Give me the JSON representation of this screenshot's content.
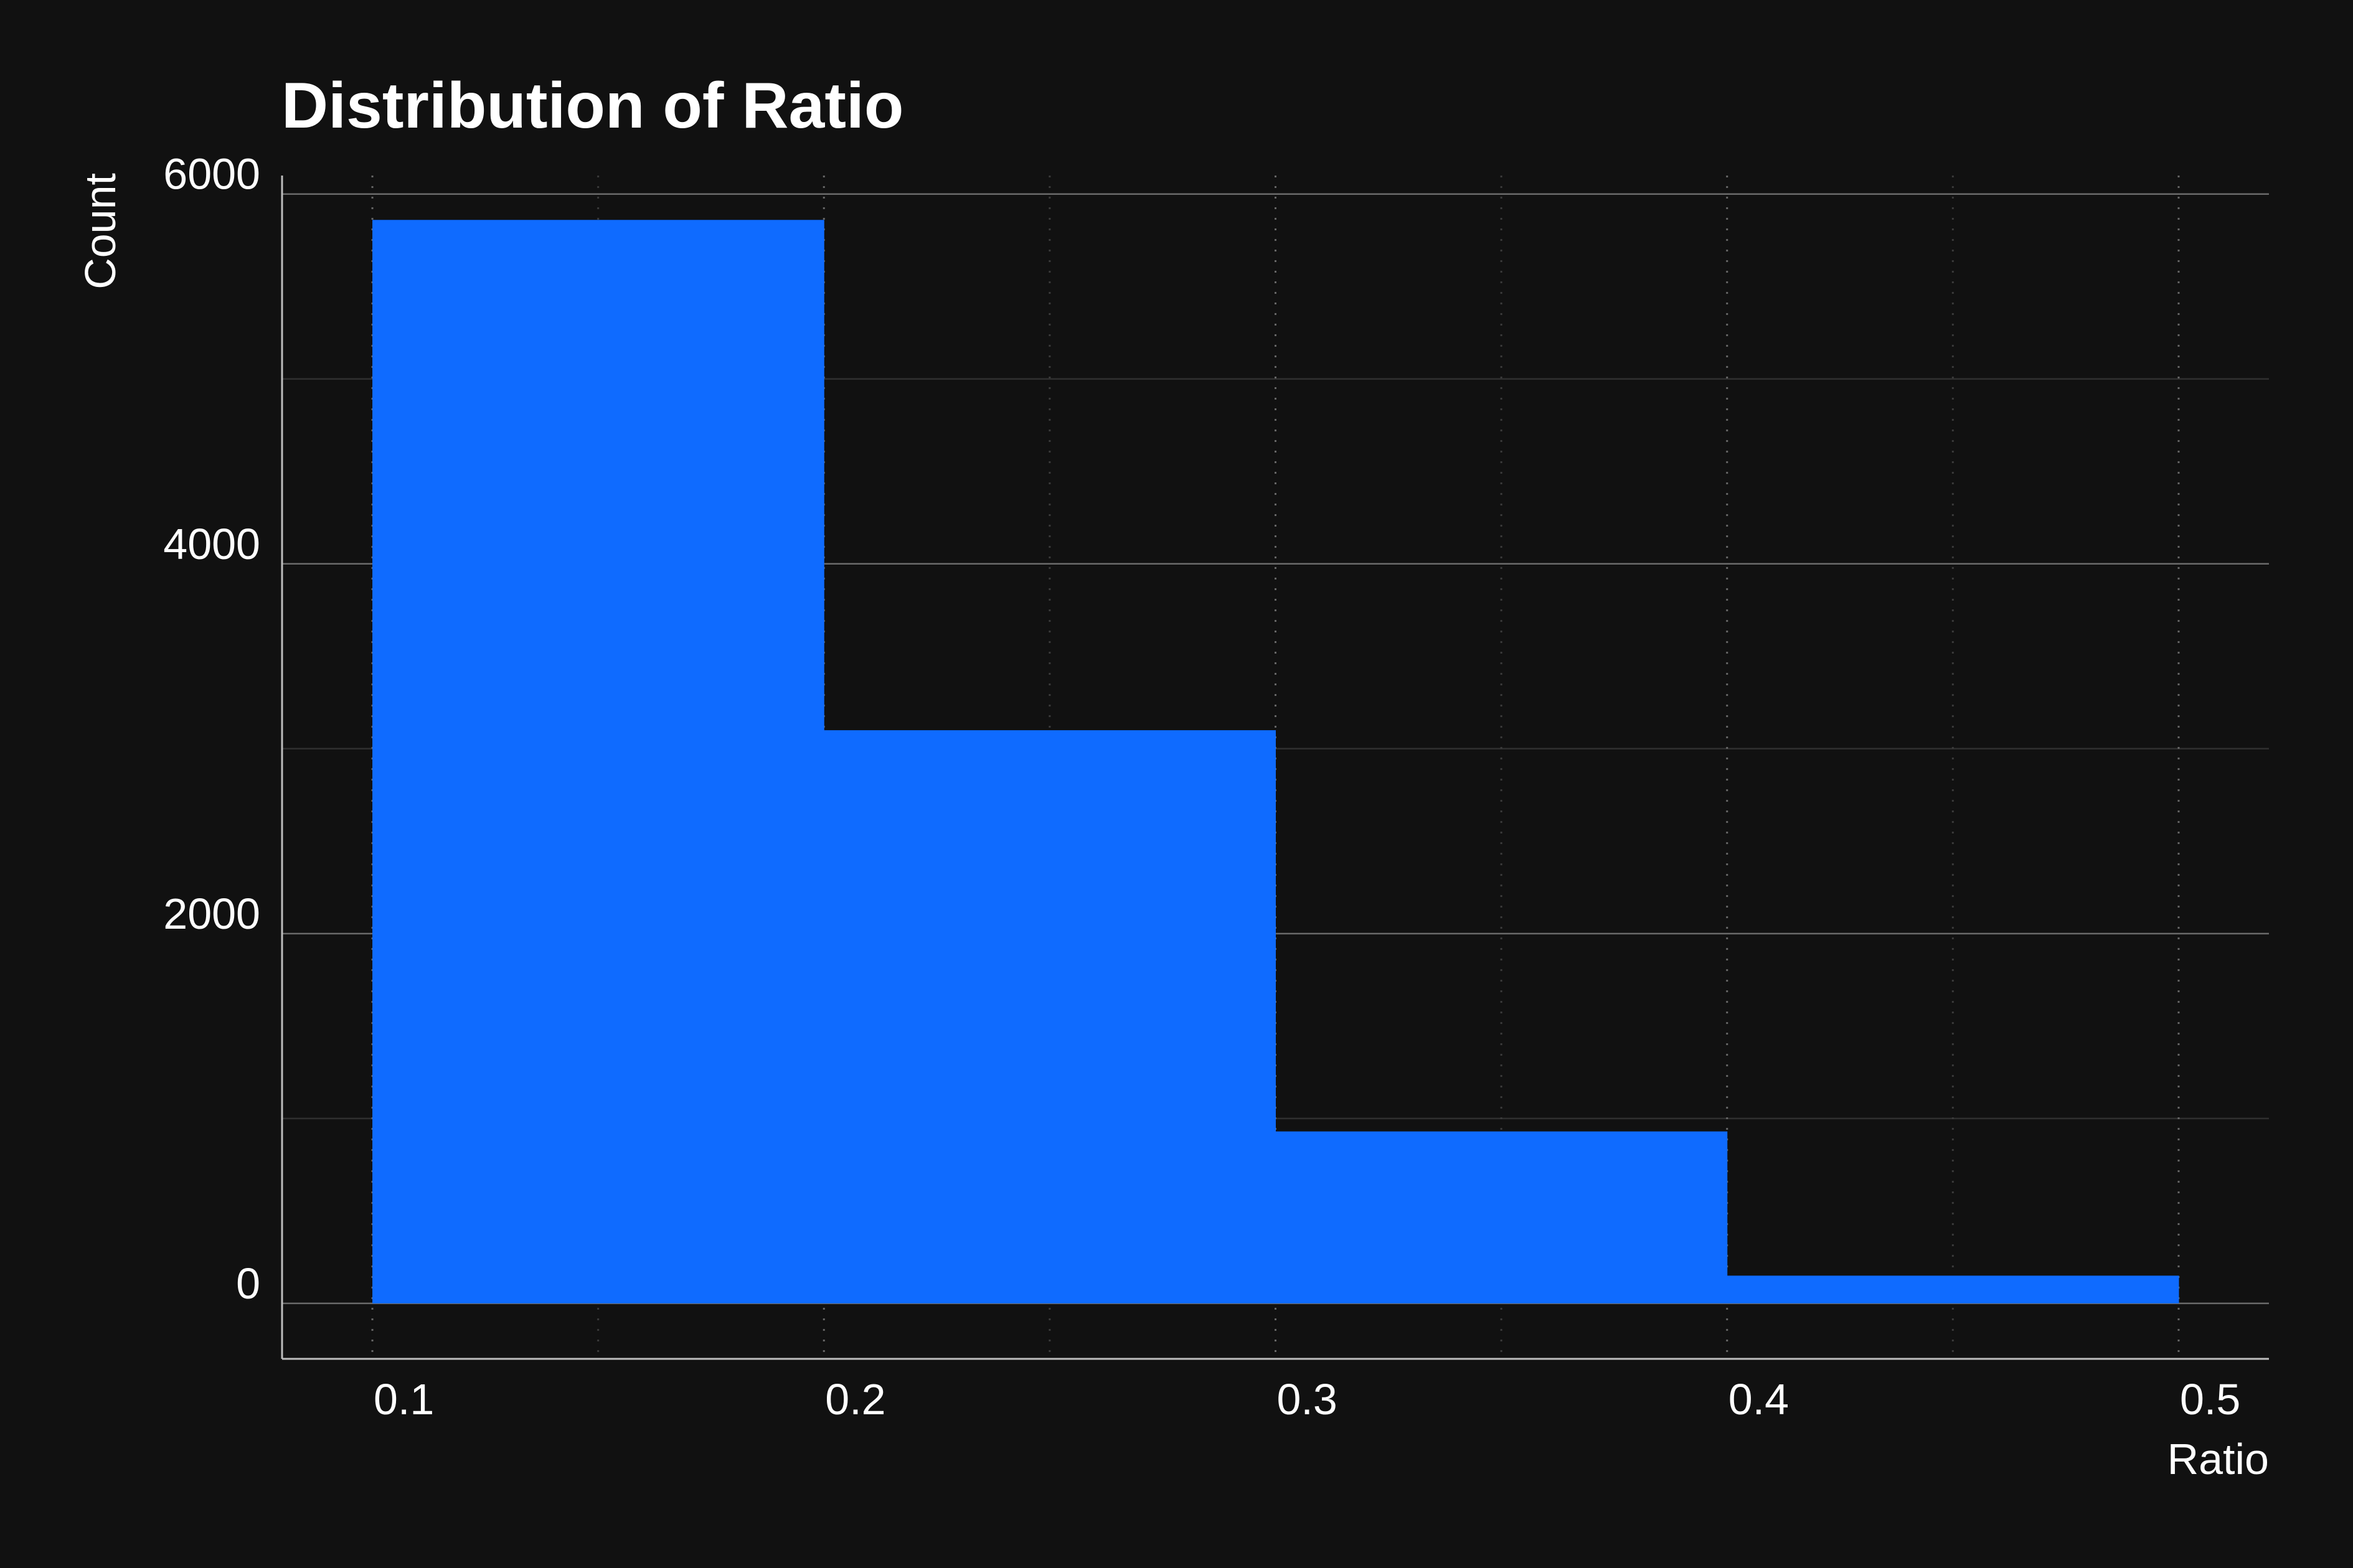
{
  "chart_data": {
    "type": "bar",
    "title": "Distribution of Ratio",
    "xlabel": "Ratio",
    "ylabel": "Count",
    "bins": [
      {
        "x0": 0.1,
        "x1": 0.2,
        "count": 5860
      },
      {
        "x0": 0.2,
        "x1": 0.3,
        "count": 3100
      },
      {
        "x0": 0.3,
        "x1": 0.4,
        "count": 930
      },
      {
        "x0": 0.4,
        "x1": 0.5,
        "count": 150
      }
    ],
    "xticks": [
      "0.1",
      "0.2",
      "0.3",
      "0.4",
      "0.5"
    ],
    "xtick_values": [
      0.1,
      0.2,
      0.3,
      0.4,
      0.5
    ],
    "yticks": [
      "0",
      "2000",
      "4000",
      "6000"
    ],
    "ytick_values": [
      0,
      2000,
      4000,
      6000
    ],
    "xlim": [
      0.08,
      0.52
    ],
    "ylim": [
      -300,
      6100
    ],
    "grid": true,
    "legend": false,
    "colors": {
      "background": "#111111",
      "bar": "#0f6bff",
      "text": "#ffffff"
    }
  }
}
